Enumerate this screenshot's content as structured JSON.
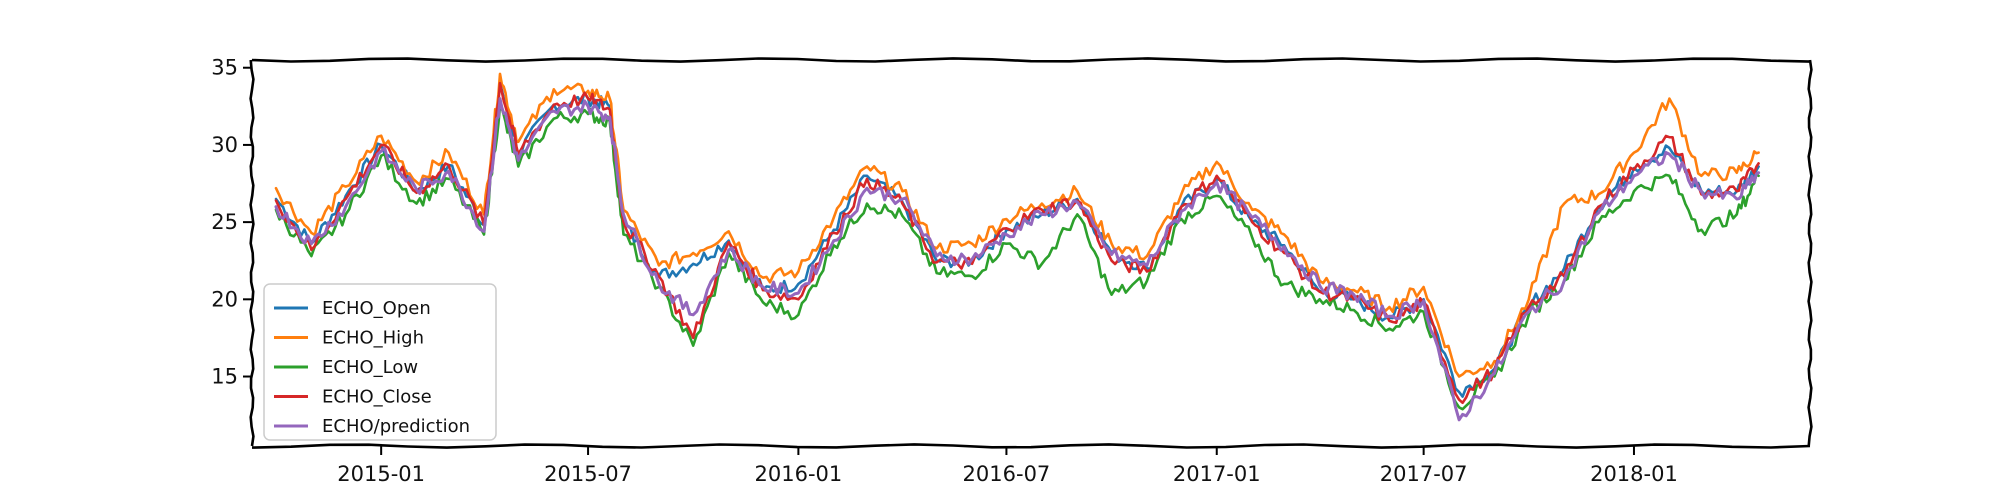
{
  "chart_data": {
    "type": "line",
    "title": "",
    "xlabel": "",
    "ylabel": "",
    "x_ticks": [
      "2015-01",
      "2015-07",
      "2016-01",
      "2016-07",
      "2017-01",
      "2017-07",
      "2018-01"
    ],
    "y_ticks": [
      15,
      20,
      25,
      30,
      35
    ],
    "xlim": [
      "2014-09-10",
      "2018-06-04"
    ],
    "ylim": [
      10.5,
      35.5
    ],
    "grid": false,
    "legend": {
      "position": "lower-left"
    },
    "style": "xkcd",
    "x": [
      "2014-10-01",
      "2014-11-01",
      "2014-12-01",
      "2015-01-01",
      "2015-02-01",
      "2015-03-01",
      "2015-04-01",
      "2015-04-15",
      "2015-05-01",
      "2015-06-01",
      "2015-07-01",
      "2015-07-20",
      "2015-08-01",
      "2015-09-01",
      "2015-10-01",
      "2015-11-01",
      "2015-12-01",
      "2016-01-01",
      "2016-02-01",
      "2016-03-01",
      "2016-04-01",
      "2016-05-01",
      "2016-06-01",
      "2016-07-01",
      "2016-08-01",
      "2016-09-01",
      "2016-10-01",
      "2016-11-01",
      "2016-12-01",
      "2017-01-01",
      "2017-02-01",
      "2017-03-01",
      "2017-04-01",
      "2017-05-01",
      "2017-06-01",
      "2017-07-01",
      "2017-08-01",
      "2017-09-01",
      "2017-10-01",
      "2017-11-01",
      "2017-12-01",
      "2018-01-01",
      "2018-02-01",
      "2018-03-01",
      "2018-04-01",
      "2018-04-20"
    ],
    "series": [
      {
        "name": "ECHO_Open",
        "color": "#1f77b4",
        "values": [
          26.5,
          23.6,
          26.7,
          30.0,
          27.0,
          28.7,
          24.8,
          34.0,
          29.5,
          32.6,
          33.0,
          32.5,
          25.0,
          21.5,
          22.3,
          23.8,
          20.6,
          21.0,
          24.5,
          28.0,
          26.3,
          22.5,
          22.5,
          24.5,
          25.5,
          26.5,
          23.0,
          22.0,
          26.0,
          27.8,
          25.0,
          23.5,
          20.5,
          20.0,
          18.8,
          20.0,
          14.0,
          15.5,
          19.5,
          22.0,
          26.0,
          28.5,
          29.8,
          27.0,
          27.0,
          28.6
        ]
      },
      {
        "name": "ECHO_High",
        "color": "#ff7f0e",
        "values": [
          27.2,
          24.3,
          27.3,
          30.6,
          27.6,
          29.5,
          25.5,
          34.6,
          30.2,
          33.6,
          33.5,
          33.0,
          25.8,
          22.2,
          23.0,
          24.4,
          21.4,
          21.8,
          25.3,
          28.6,
          27.0,
          23.3,
          23.6,
          25.2,
          26.2,
          27.0,
          23.6,
          22.8,
          26.8,
          28.9,
          25.8,
          24.2,
          21.2,
          20.6,
          19.5,
          20.8,
          15.0,
          16.0,
          20.0,
          26.2,
          26.8,
          29.5,
          33.0,
          28.0,
          28.2,
          29.5
        ]
      },
      {
        "name": "ECHO_Low",
        "color": "#2ca02c",
        "values": [
          25.8,
          22.8,
          25.5,
          29.3,
          26.2,
          27.8,
          24.2,
          32.5,
          28.6,
          31.7,
          32.0,
          31.5,
          24.2,
          20.8,
          17.0,
          23.0,
          19.8,
          19.0,
          23.5,
          26.2,
          25.4,
          21.7,
          21.5,
          23.6,
          22.3,
          25.5,
          20.3,
          21.2,
          25.2,
          26.7,
          24.0,
          21.0,
          20.0,
          19.3,
          18.1,
          19.2,
          13.0,
          15.0,
          19.0,
          21.2,
          25.0,
          27.0,
          28.0,
          24.5,
          25.5,
          28.0
        ]
      },
      {
        "name": "ECHO_Close",
        "color": "#d62728",
        "values": [
          26.4,
          23.2,
          26.5,
          30.0,
          26.9,
          28.7,
          24.8,
          34.0,
          29.4,
          32.6,
          33.0,
          32.3,
          25.0,
          21.5,
          17.5,
          23.7,
          20.6,
          20.0,
          24.3,
          27.8,
          26.2,
          22.4,
          22.3,
          24.6,
          25.8,
          26.4,
          22.5,
          21.8,
          26.0,
          28.0,
          25.0,
          23.0,
          20.5,
          20.0,
          18.6,
          19.8,
          13.5,
          15.4,
          19.5,
          21.5,
          26.0,
          28.4,
          30.5,
          26.8,
          27.0,
          28.8
        ]
      },
      {
        "name": "ECHO/prediction",
        "color": "#9467bd",
        "values": [
          26.0,
          23.6,
          26.0,
          29.6,
          27.1,
          28.3,
          24.4,
          33.0,
          29.0,
          32.2,
          32.5,
          31.8,
          25.5,
          21.0,
          19.0,
          23.2,
          20.8,
          20.4,
          23.8,
          27.2,
          26.5,
          22.8,
          22.6,
          24.2,
          25.5,
          26.3,
          22.9,
          22.2,
          25.7,
          27.6,
          25.3,
          23.4,
          20.9,
          20.3,
          18.9,
          19.9,
          12.2,
          15.2,
          19.2,
          21.2,
          25.6,
          28.0,
          29.4,
          27.0,
          26.5,
          28.2
        ]
      }
    ]
  }
}
